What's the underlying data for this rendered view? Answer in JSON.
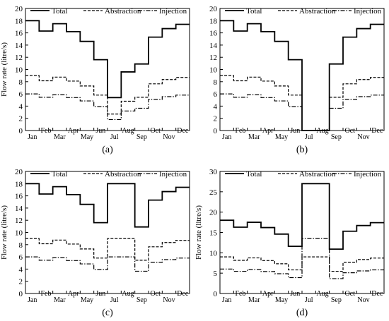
{
  "legend_labels": {
    "total": "Total",
    "abstraction": "Abstraction",
    "injection": "Injection"
  },
  "months": [
    "Jan",
    "Feb",
    "Mar",
    "Apr",
    "May",
    "Jun",
    "Jul",
    "Aug",
    "Sep",
    "Oct",
    "Nov",
    "Dec"
  ],
  "chart_data": [
    {
      "type": "line",
      "panel_label": "(a)",
      "ylabel": "Flow rate (litre/s)",
      "ylim": [
        0,
        20
      ],
      "yticks": [
        0,
        2,
        4,
        6,
        8,
        10,
        12,
        14,
        16,
        18,
        20
      ],
      "xlim": [
        0,
        12
      ],
      "series": [
        {
          "name": "Total",
          "style": "solid",
          "values": [
            18,
            16.3,
            17.5,
            16.2,
            14.6,
            11.6,
            5.4,
            9.6,
            10.9,
            15.3,
            16.7,
            17.4
          ]
        },
        {
          "name": "Abstraction",
          "style": "dashed",
          "values": [
            9,
            8.15,
            8.75,
            8.1,
            7.3,
            5.8,
            2.7,
            4.8,
            5.45,
            7.65,
            8.35,
            8.7
          ]
        },
        {
          "name": "Injection",
          "style": "dashdot",
          "values": [
            6,
            5.45,
            5.85,
            5.4,
            4.85,
            3.9,
            1.8,
            3.2,
            3.65,
            5.1,
            5.55,
            5.8
          ]
        }
      ]
    },
    {
      "type": "line",
      "panel_label": "(b)",
      "ylabel": "",
      "ylim": [
        0,
        20
      ],
      "yticks": [
        0,
        2,
        4,
        6,
        8,
        10,
        12,
        14,
        16,
        18,
        20
      ],
      "xlim": [
        0,
        12
      ],
      "series": [
        {
          "name": "Total",
          "style": "solid",
          "values": [
            18,
            16.3,
            17.5,
            16.2,
            14.6,
            11.6,
            0,
            0,
            10.9,
            15.3,
            16.7,
            17.4
          ]
        },
        {
          "name": "Abstraction",
          "style": "dashed",
          "values": [
            9,
            8.15,
            8.75,
            8.1,
            7.3,
            5.8,
            null,
            null,
            5.45,
            7.65,
            8.35,
            8.7
          ]
        },
        {
          "name": "Injection",
          "style": "dashdot",
          "values": [
            6,
            5.45,
            5.85,
            5.4,
            4.85,
            3.9,
            null,
            null,
            3.65,
            5.1,
            5.55,
            5.8
          ]
        }
      ]
    },
    {
      "type": "line",
      "panel_label": "(c)",
      "ylabel": "Flow rate (litre/s)",
      "ylim": [
        0,
        20
      ],
      "yticks": [
        0,
        2,
        4,
        6,
        8,
        10,
        12,
        14,
        16,
        18,
        20
      ],
      "xlim": [
        0,
        12
      ],
      "series": [
        {
          "name": "Total",
          "style": "solid",
          "values": [
            18,
            16.3,
            17.5,
            16.2,
            14.6,
            11.6,
            18,
            18,
            10.9,
            15.3,
            16.7,
            17.4
          ]
        },
        {
          "name": "Abstraction",
          "style": "dashed",
          "values": [
            9,
            8.15,
            8.75,
            8.1,
            7.3,
            5.8,
            9,
            9,
            5.45,
            7.65,
            8.35,
            8.7
          ]
        },
        {
          "name": "Injection",
          "style": "dashdot",
          "values": [
            6,
            5.45,
            5.85,
            5.4,
            4.85,
            3.9,
            6,
            6,
            3.65,
            5.1,
            5.55,
            5.8
          ]
        }
      ]
    },
    {
      "type": "line",
      "panel_label": "(d)",
      "ylabel": "Flow rate (litre/s)",
      "ylim": [
        0,
        30
      ],
      "yticks": [
        0,
        5,
        10,
        15,
        20,
        25,
        30
      ],
      "xlim": [
        0,
        12
      ],
      "series": [
        {
          "name": "Total",
          "style": "solid",
          "values": [
            18,
            16.3,
            17.5,
            16.2,
            14.6,
            11.6,
            27,
            27,
            10.9,
            15.3,
            16.7,
            17.4
          ]
        },
        {
          "name": "Abstraction",
          "style": "dashed",
          "values": [
            9,
            8.15,
            8.75,
            8.1,
            7.3,
            5.8,
            9,
            9,
            5.45,
            7.65,
            8.35,
            8.7
          ]
        },
        {
          "name": "Injection",
          "style": "dashdot",
          "values": [
            6,
            5.45,
            5.85,
            5.4,
            4.85,
            3.9,
            13.5,
            13.5,
            3.65,
            5.1,
            5.55,
            5.8
          ]
        }
      ]
    }
  ]
}
